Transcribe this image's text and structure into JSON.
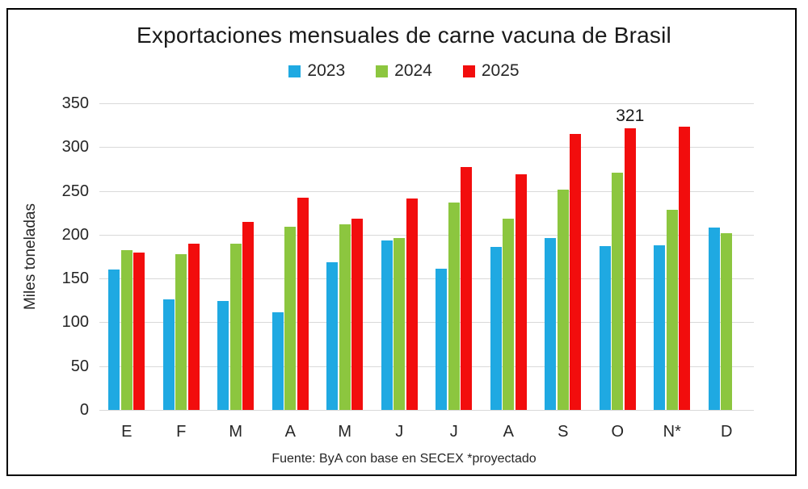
{
  "chart_data": {
    "type": "bar",
    "title": "Exportaciones mensuales de carne vacuna de Brasil",
    "ylabel": "Miles toneladas",
    "footer": "Fuente: ByA con base en SECEX *proyectado",
    "categories": [
      "E",
      "F",
      "M",
      "A",
      "M",
      "J",
      "J",
      "A",
      "S",
      "O",
      "N*",
      "D"
    ],
    "series": [
      {
        "name": "2023",
        "color": "#1FA9E2",
        "values": [
          160,
          126,
          124,
          111,
          169,
          193,
          161,
          186,
          196,
          187,
          188,
          208
        ]
      },
      {
        "name": "2024",
        "color": "#8CC63F",
        "values": [
          182,
          178,
          190,
          209,
          212,
          196,
          237,
          218,
          251,
          271,
          228,
          202
        ]
      },
      {
        "name": "2025",
        "color": "#F20D0D",
        "values": [
          180,
          190,
          215,
          242,
          218,
          241,
          277,
          269,
          315,
          321,
          323,
          null
        ]
      }
    ],
    "annotation": {
      "text": "321",
      "category_index": 9,
      "series_index": 2
    },
    "ylim": [
      0,
      350
    ],
    "ytick_step": 50,
    "grid": true,
    "legend_position": "top",
    "gridline_color": "#D9D9D9",
    "text_color": "#262626"
  }
}
